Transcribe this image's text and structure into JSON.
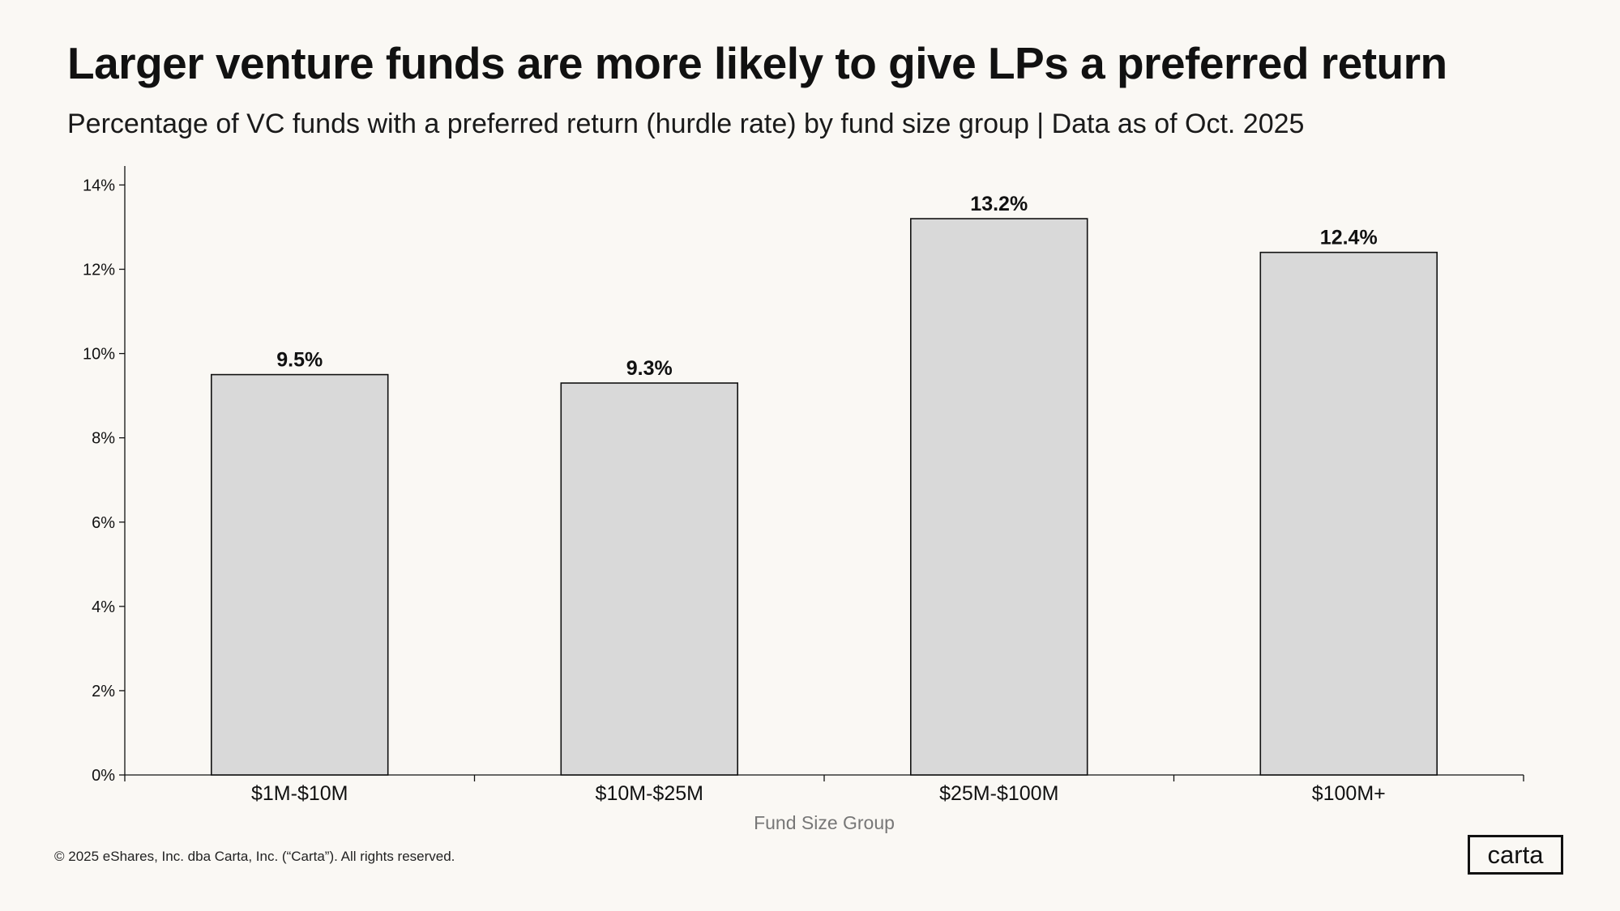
{
  "header": {
    "title": "Larger venture funds are more likely to give LPs a preferred return",
    "subtitle": "Percentage of VC funds with a preferred return (hurdle rate) by fund size group | Data as of Oct. 2025"
  },
  "chart_data": {
    "type": "bar",
    "categories": [
      "$1M-$10M",
      "$10M-$25M",
      "$25M-$100M",
      "$100M+"
    ],
    "values": [
      9.5,
      9.3,
      13.2,
      12.4
    ],
    "value_labels": [
      "9.5%",
      "9.3%",
      "13.2%",
      "12.4%"
    ],
    "xlabel": "Fund Size Group",
    "ylabel": "",
    "ylim": [
      0,
      14.45
    ],
    "yticks": [
      0,
      2,
      4,
      6,
      8,
      10,
      12,
      14
    ],
    "ytick_labels": [
      "0%",
      "2%",
      "4%",
      "6%",
      "8%",
      "10%",
      "12%",
      "14%"
    ],
    "grid": false,
    "colors": {
      "bar_fill": "#d9d9d9",
      "bar_stroke": "#111111",
      "axis": "#111111",
      "background": "#faf8f4"
    }
  },
  "footer": {
    "copyright": "© 2025 eShares, Inc. dba Carta, Inc. (“Carta”). All rights reserved.",
    "logo_text": "carta"
  }
}
